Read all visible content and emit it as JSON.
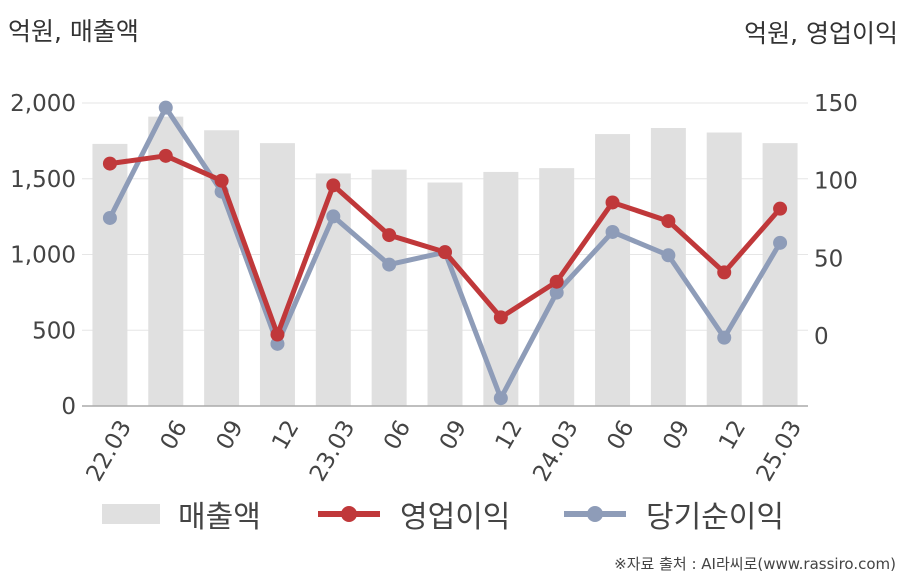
{
  "units": {
    "left": "억원, 매출액",
    "right": "억원, 영업이익"
  },
  "source": "※자료 출처 : AI라씨로(www.rassiro.com)",
  "chart_data": {
    "type": "bar",
    "categories": [
      "22.03",
      "06",
      "09",
      "12",
      "23.03",
      "06",
      "09",
      "12",
      "24.03",
      "06",
      "09",
      "12",
      "25.03"
    ],
    "left_axis": {
      "ticks": [
        "0",
        "500",
        "1,000",
        "1,500",
        "2,000"
      ],
      "ylim": [
        0,
        2000
      ]
    },
    "right_axis": {
      "ticks": [
        "0",
        "50",
        "100",
        "150"
      ],
      "ylim": [
        -45,
        150
      ]
    },
    "grid": true,
    "legend_position": "bottom",
    "series": [
      {
        "name": "매출액",
        "type": "bar",
        "axis": "left",
        "color": "#e0e0e0",
        "values": [
          1730,
          1910,
          1820,
          1735,
          1535,
          1560,
          1475,
          1545,
          1570,
          1795,
          1835,
          1805,
          1735
        ]
      },
      {
        "name": "영업이익",
        "type": "line",
        "axis": "right",
        "color": "#c0383a",
        "values": [
          111,
          116,
          100,
          1,
          97,
          65,
          54,
          12,
          35,
          86,
          74,
          41,
          82
        ]
      },
      {
        "name": "당기순이익",
        "type": "line",
        "axis": "right",
        "color": "#8e9cb8",
        "values": [
          76,
          147,
          93,
          -5,
          77,
          46,
          54,
          -40,
          28,
          67,
          52,
          -1,
          60
        ]
      }
    ]
  }
}
